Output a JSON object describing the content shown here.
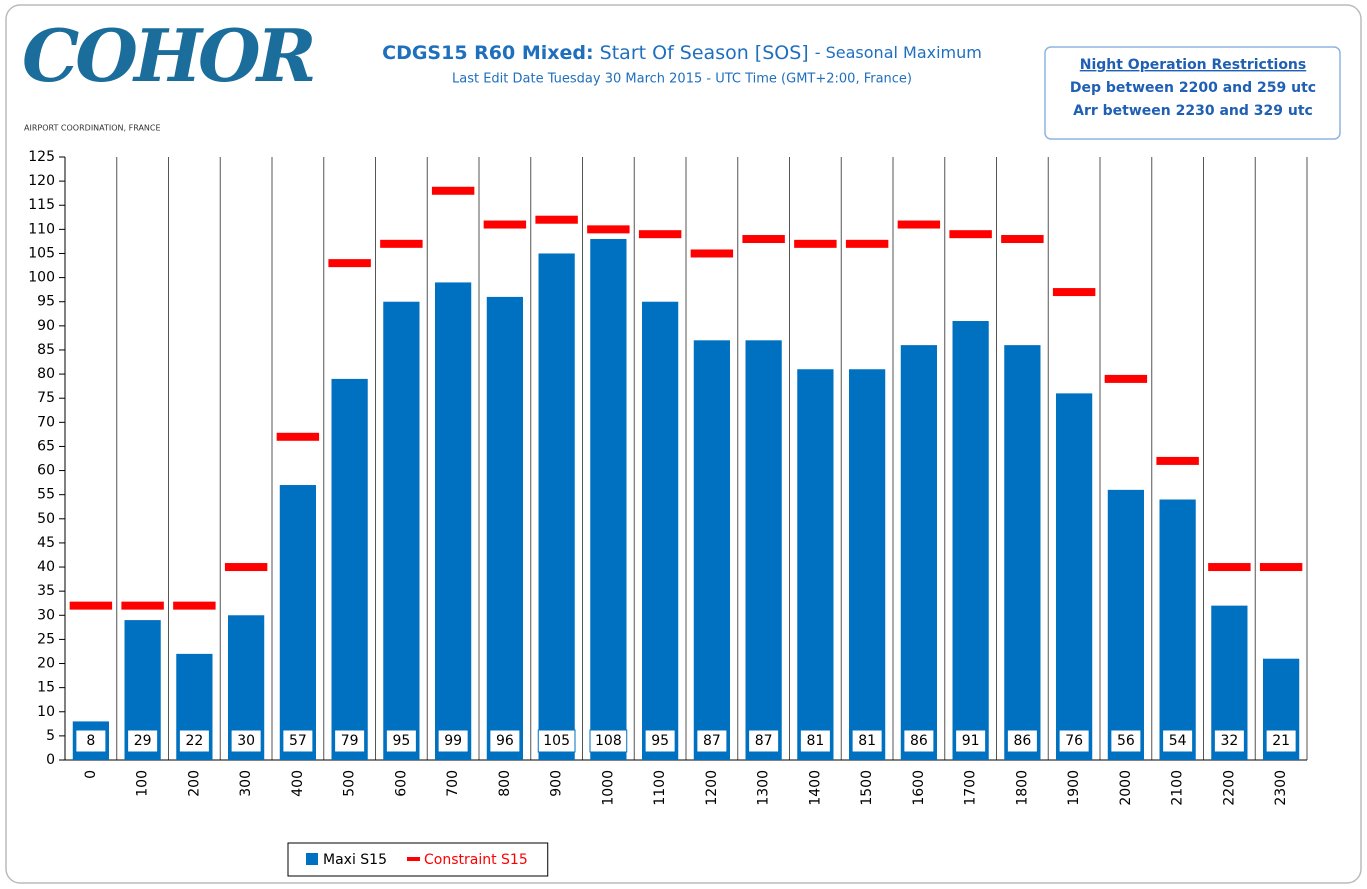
{
  "header": {
    "logo": "COHOR",
    "logo_caption": "AIRPORT COORDINATION, FRANCE"
  },
  "notice": {
    "title": "Night Operation Restrictions",
    "lines": [
      "Dep between 2200 and  259 utc",
      "Arr between 2230 and  329 utc"
    ]
  },
  "chart_data": {
    "type": "bar",
    "title": {
      "bold": "CDGS15 R60 Mixed:",
      "main": "Start Of Season [SOS]",
      "suffix": "- Seasonal Maximum"
    },
    "subtitle": "Last Edit Date Tuesday 30 March 2015 - UTC Time (GMT+2:00,  France)",
    "categories": [
      "0",
      "100",
      "200",
      "300",
      "400",
      "500",
      "600",
      "700",
      "800",
      "900",
      "1000",
      "1100",
      "1200",
      "1300",
      "1400",
      "1500",
      "1600",
      "1700",
      "1800",
      "1900",
      "2000",
      "2100",
      "2200",
      "2300"
    ],
    "series": [
      {
        "name": "Maxi S15",
        "color": "#0070c0",
        "style": "bar",
        "values": [
          8,
          29,
          22,
          30,
          57,
          79,
          95,
          99,
          96,
          105,
          108,
          95,
          87,
          87,
          81,
          81,
          86,
          91,
          86,
          76,
          56,
          54,
          32,
          21
        ]
      },
      {
        "name": "Constraint S15",
        "color": "#ff0000",
        "style": "dash",
        "values": [
          32,
          32,
          32,
          40,
          67,
          103,
          107,
          118,
          111,
          112,
          110,
          109,
          105,
          108,
          107,
          107,
          111,
          109,
          108,
          97,
          79,
          62,
          40,
          40
        ]
      }
    ],
    "ylim": [
      0,
      125
    ],
    "yticks": [
      0,
      5,
      10,
      15,
      20,
      25,
      30,
      35,
      40,
      45,
      50,
      55,
      60,
      65,
      70,
      75,
      80,
      85,
      90,
      95,
      100,
      105,
      110,
      115,
      120,
      125
    ],
    "data_labels": true,
    "legend": "bottom"
  }
}
